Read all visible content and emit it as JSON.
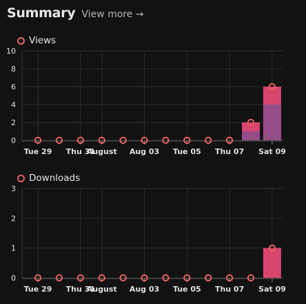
{
  "header": {
    "title": "Summary",
    "view_more": "View more →"
  },
  "colors": {
    "accent": "#e9635f",
    "bar": "#d8466e",
    "bar_overlay": "#8a4f8f",
    "grid": "#2e2e2e"
  },
  "chart_data": [
    {
      "type": "bar",
      "series": [
        {
          "name": "Views",
          "values": [
            0,
            0,
            0,
            0,
            0,
            0,
            0,
            0,
            0,
            0,
            2,
            6
          ]
        }
      ],
      "stack": [
        0,
        0,
        0,
        0,
        0,
        0,
        0,
        0,
        0,
        0,
        1,
        4
      ],
      "ylim": [
        0,
        10
      ],
      "yticks": [
        0,
        2,
        4,
        6,
        8,
        10
      ],
      "xticks": [
        {
          "label": "Tue 29",
          "at": 0
        },
        {
          "label": "Thu 31",
          "at": 2
        },
        {
          "label": "August",
          "at": 3
        },
        {
          "label": "Aug 03",
          "at": 5
        },
        {
          "label": "Tue 05",
          "at": 7
        },
        {
          "label": "Thu 07",
          "at": 9
        },
        {
          "label": "Sat 09",
          "at": 11
        }
      ],
      "grid": true
    },
    {
      "type": "bar",
      "series": [
        {
          "name": "Downloads",
          "values": [
            0,
            0,
            0,
            0,
            0,
            0,
            0,
            0,
            0,
            0,
            0,
            1
          ]
        }
      ],
      "stack": [
        0,
        0,
        0,
        0,
        0,
        0,
        0,
        0,
        0,
        0,
        0,
        0
      ],
      "ylim": [
        0,
        3
      ],
      "yticks": [
        0,
        1,
        2,
        3
      ],
      "xticks": [
        {
          "label": "Tue 29",
          "at": 0
        },
        {
          "label": "Thu 31",
          "at": 2
        },
        {
          "label": "August",
          "at": 3
        },
        {
          "label": "Aug 03",
          "at": 5
        },
        {
          "label": "Tue 05",
          "at": 7
        },
        {
          "label": "Thu 07",
          "at": 9
        },
        {
          "label": "Sat 09",
          "at": 11
        }
      ],
      "grid": true
    }
  ]
}
